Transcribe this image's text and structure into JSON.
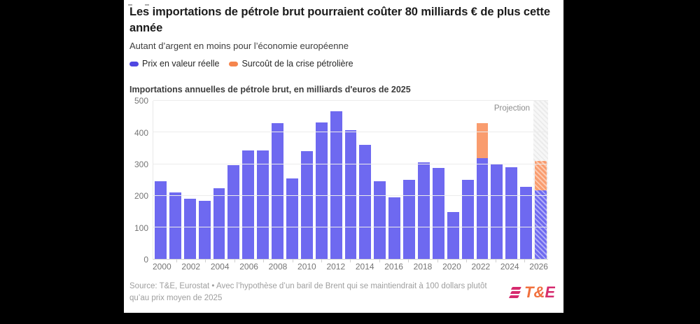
{
  "page": {
    "background": "#000000",
    "card_background": "#ffffff"
  },
  "header": {
    "title": "Les importations de pétrole brut pourraient coûter 80 milliards € de plus cette année",
    "subtitle": "Autant d’argent en moins pour l’économie européenne"
  },
  "legend": {
    "items": [
      {
        "label": "Prix en valeur réelle",
        "color": "#4f47e2"
      },
      {
        "label": "Surcoût de la crise pétrolière",
        "color": "#f5854d"
      }
    ]
  },
  "chart_data": {
    "type": "bar",
    "stacked": true,
    "title": "Importations annuelles de pétrole brut, en milliards d'euros de 2025",
    "x": [
      2000,
      2001,
      2002,
      2003,
      2004,
      2005,
      2006,
      2007,
      2008,
      2009,
      2010,
      2011,
      2012,
      2013,
      2014,
      2015,
      2016,
      2017,
      2018,
      2019,
      2020,
      2021,
      2022,
      2023,
      2024,
      2025,
      2026
    ],
    "series": [
      {
        "name": "Prix en valeur réelle",
        "color": "#6e69f0",
        "values": [
          245,
          210,
          190,
          185,
          224,
          296,
          344,
          343,
          430,
          255,
          341,
          432,
          467,
          407,
          362,
          246,
          196,
          251,
          306,
          287,
          149,
          251,
          318,
          300,
          290,
          229,
          218
        ]
      },
      {
        "name": "Surcoût de la crise pétrolière",
        "color": "#f99c6e",
        "values": [
          0,
          0,
          0,
          0,
          0,
          0,
          0,
          0,
          0,
          0,
          0,
          0,
          0,
          0,
          0,
          0,
          0,
          0,
          0,
          0,
          0,
          0,
          112,
          0,
          0,
          0,
          92
        ]
      }
    ],
    "ylim": [
      0,
      500
    ],
    "yticks": [
      0,
      100,
      200,
      300,
      400,
      500
    ],
    "xtick_step": 2,
    "grid": true,
    "legend_position": "top",
    "projection": {
      "x": 2026,
      "label": "Projection"
    }
  },
  "footer": {
    "source_text": "Source: T&E, Eurostat • Avec l’hypothèse d’un baril de Brent qui se maintiendrait à 100 dollars plutôt qu’au prix moyen de 2025",
    "logo_text": "T&E"
  },
  "colors": {
    "bar_blue": "#6e69f0",
    "bar_orange": "#f99c6e"
  }
}
